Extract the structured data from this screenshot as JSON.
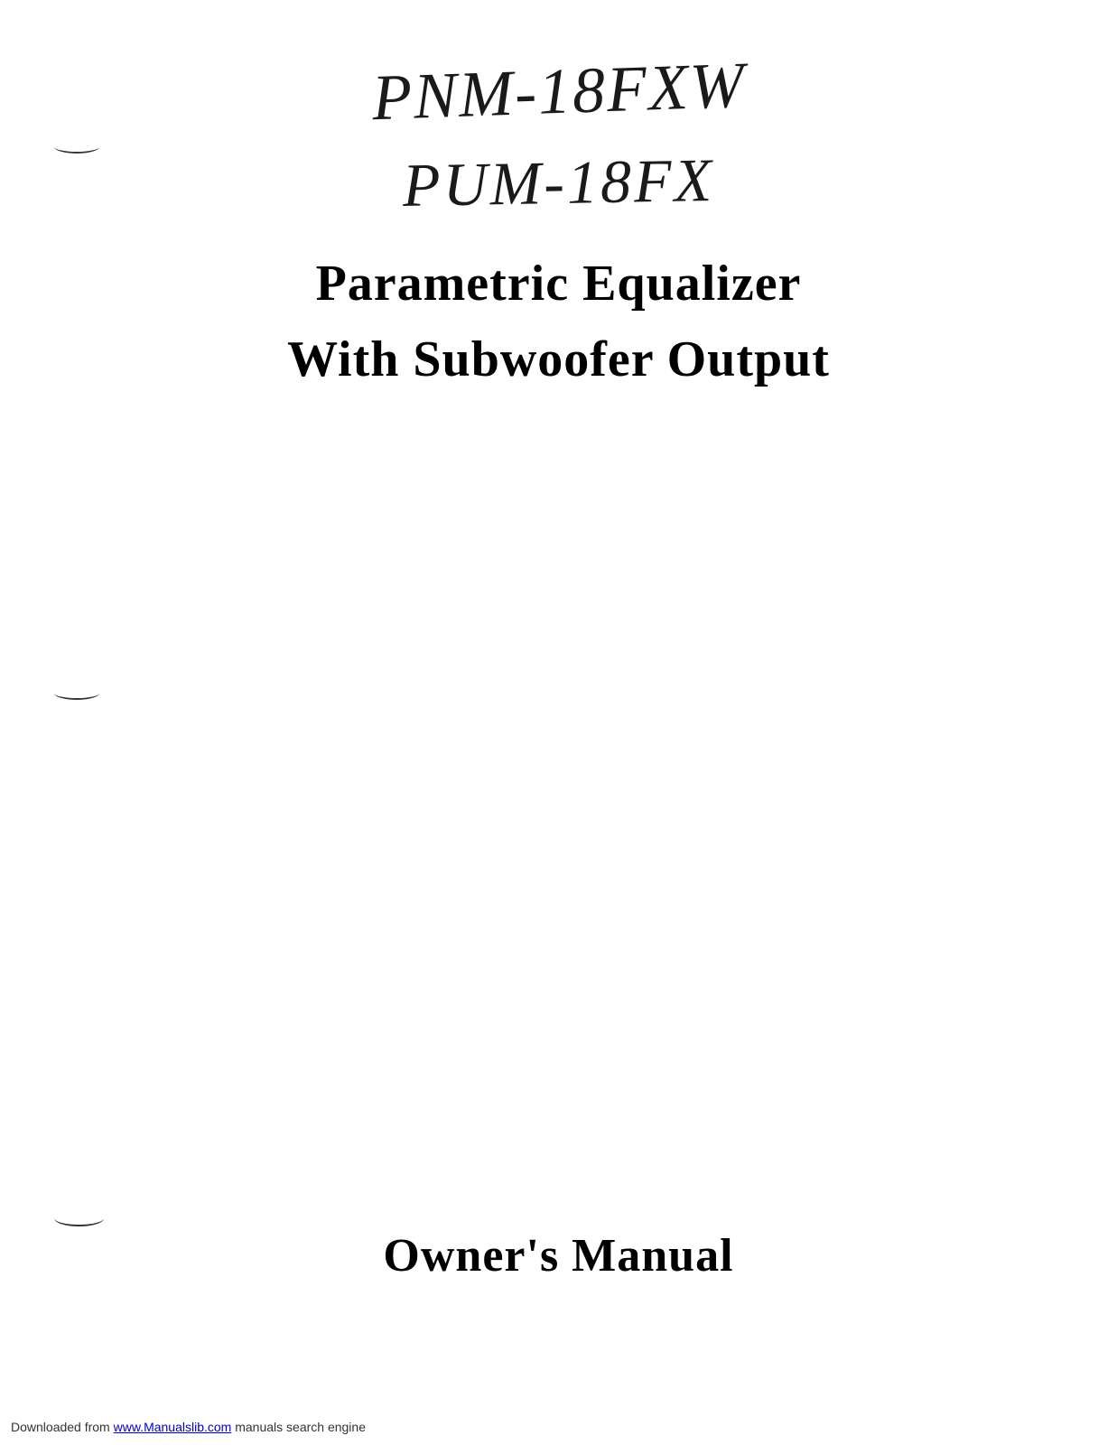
{
  "handwritten": {
    "line1": "PNM-18FXW",
    "line2": "PUM-18FX"
  },
  "title": {
    "line1": "Parametric Equalizer",
    "line2": "With Subwoofer Output"
  },
  "subtitle": "Owner's Manual",
  "footer": {
    "prefix": "Downloaded from ",
    "link_text": "www.Manualslib.com",
    "suffix": " manuals search engine"
  },
  "colors": {
    "background": "#ffffff",
    "text_main": "#000000",
    "text_handwritten": "#1a1a1a",
    "link": "#0000cc"
  },
  "typography": {
    "title_fontsize": 56,
    "subtitle_fontsize": 52,
    "handwritten_fontsize": 72,
    "footer_fontsize": 14
  }
}
